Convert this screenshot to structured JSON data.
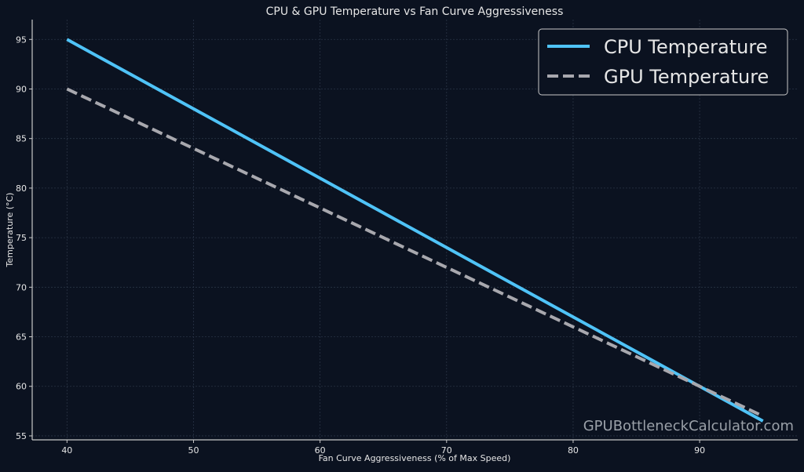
{
  "chart_data": {
    "type": "line",
    "title": "CPU & GPU Temperature vs Fan Curve Aggressiveness",
    "xlabel": "Fan Curve Aggressiveness (% of Max Speed)",
    "ylabel": "Temperature (°C)",
    "xlim": [
      37.25,
      97.75
    ],
    "ylim": [
      54.6,
      97
    ],
    "xticks": [
      40,
      50,
      60,
      70,
      80,
      90
    ],
    "yticks": [
      55,
      60,
      65,
      70,
      75,
      80,
      85,
      90,
      95
    ],
    "grid": true,
    "legend_position": "top-right",
    "x": [
      40,
      45,
      50,
      55,
      60,
      65,
      70,
      75,
      80,
      85,
      90,
      95
    ],
    "series": [
      {
        "name": "CPU Temperature",
        "color": "#4fc3f7",
        "style": "solid",
        "values": [
          95,
          91.5,
          88,
          84.5,
          81,
          77.5,
          74,
          70.5,
          67,
          63.5,
          60,
          56.5
        ]
      },
      {
        "name": "GPU Temperature",
        "color": "#a8a8ae",
        "style": "dashed",
        "values": [
          90,
          87,
          84,
          81,
          78,
          75,
          72,
          69,
          66,
          63,
          60,
          57
        ]
      }
    ],
    "watermark": "GPUBottleneckCalculator.com"
  },
  "colors": {
    "background": "#0b1220",
    "axis": "#c8c8c8",
    "grid": "#2a3445",
    "text": "#e6e6e6"
  }
}
